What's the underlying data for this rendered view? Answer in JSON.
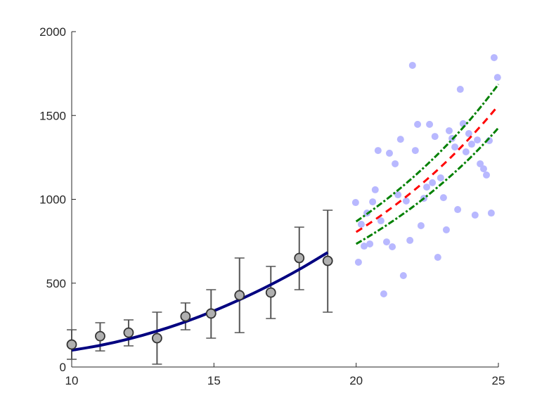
{
  "chart_data": {
    "type": "scatter",
    "title": "",
    "xlabel": "",
    "ylabel": "",
    "xlim": [
      10,
      25
    ],
    "ylim": [
      0,
      2000
    ],
    "xticks": [
      10,
      15,
      20,
      25
    ],
    "yticks": [
      0,
      500,
      1000,
      1500,
      2000
    ],
    "grid": false,
    "colors": {
      "fit": "#000080",
      "marker_face": "#b0b0b0",
      "marker_edge": "#333333",
      "errorbar": "#555555",
      "scatter": "#b8b8ff",
      "prediction": "#ff0000",
      "bounds": "#008000",
      "axis": "#262626"
    },
    "errorbar_series": {
      "x": [
        10,
        11,
        12,
        13,
        14,
        14.9,
        15.9,
        17,
        18,
        19
      ],
      "y": [
        134,
        184,
        205,
        172,
        302,
        319,
        428,
        444,
        650,
        633
      ],
      "lower": [
        46,
        96,
        126,
        17,
        222,
        172,
        205,
        289,
        461,
        327
      ],
      "upper": [
        222,
        264,
        281,
        327,
        382,
        461,
        650,
        600,
        834,
        935
      ]
    },
    "fit_line": {
      "x": [
        10,
        11,
        12,
        13,
        14,
        15,
        16,
        17,
        18,
        19
      ],
      "y": [
        100,
        129,
        167,
        214,
        270,
        335,
        409,
        491,
        582,
        683
      ]
    },
    "scatter_series": {
      "x": [
        24.85,
        21.98,
        24.97,
        23.66,
        22.16,
        22.58,
        23.27,
        21.56,
        22.77,
        23.37,
        23.76,
        23.96,
        24.26,
        24.68,
        24.06,
        23.47,
        23.86,
        20.77,
        21.17,
        22.08,
        21.37,
        24.36,
        24.48,
        24.58,
        22.97,
        22.68,
        22.48,
        20.67,
        21.47,
        19.98,
        20.58,
        21.76,
        22.38,
        23.07,
        20.38,
        23.57,
        24.18,
        24.75,
        20.18,
        20.87,
        22.28,
        23.17,
        20.28,
        20.48,
        21.07,
        21.27,
        21.89,
        20.08,
        22.87,
        21.66,
        20.97
      ],
      "y": [
        1845,
        1799,
        1727,
        1656,
        1447,
        1447,
        1409,
        1358,
        1375,
        1363,
        1451,
        1392,
        1354,
        1350,
        1329,
        1312,
        1283,
        1291,
        1275,
        1291,
        1212,
        1212,
        1182,
        1145,
        1128,
        1099,
        1073,
        1057,
        1027,
        981,
        985,
        990,
        1006,
        1010,
        918,
        939,
        906,
        918,
        851,
        872,
        843,
        818,
        721,
        734,
        746,
        717,
        755,
        625,
        654,
        545,
        436
      ]
    },
    "prediction_line": {
      "x": [
        20,
        21,
        22,
        23,
        24,
        25
      ],
      "y": [
        805,
        919,
        1049,
        1197,
        1367,
        1560
      ]
    },
    "upper_bound": {
      "x": [
        20,
        21,
        22,
        23,
        24,
        25
      ],
      "y": [
        868,
        991,
        1131,
        1291,
        1474,
        1686
      ]
    },
    "lower_bound": {
      "x": [
        20,
        21,
        22,
        23,
        24,
        25
      ],
      "y": [
        734,
        838,
        956,
        1092,
        1246,
        1426
      ]
    }
  }
}
